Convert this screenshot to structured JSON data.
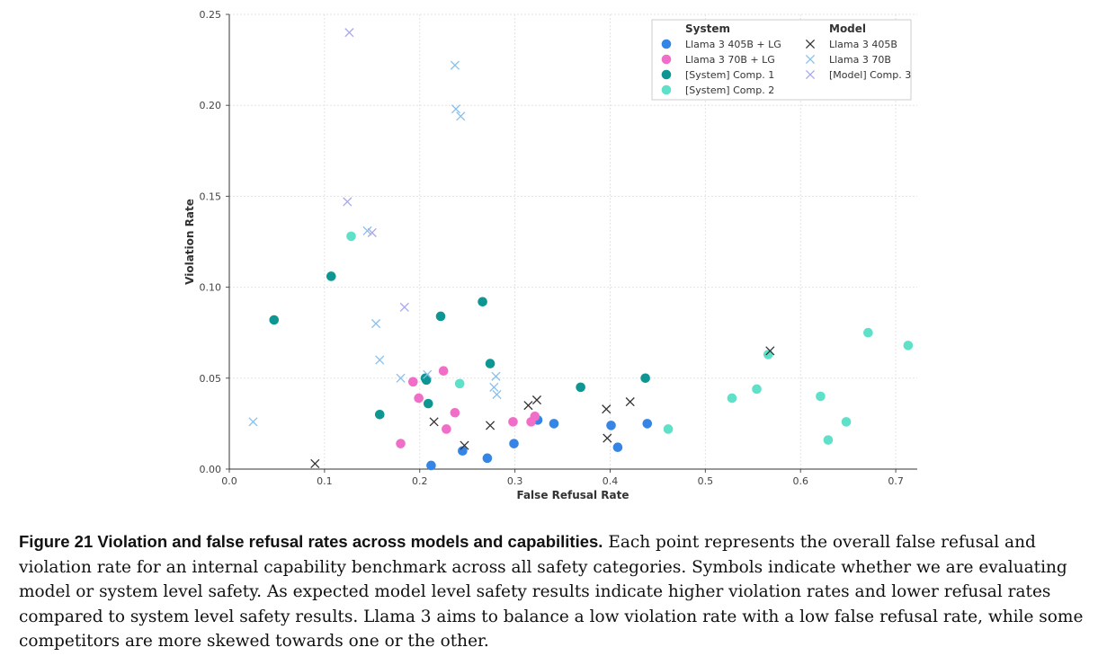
{
  "chart_data": {
    "type": "scatter",
    "xlabel": "False Refusal Rate",
    "ylabel": "Violation Rate",
    "xlim": [
      0.0,
      0.72
    ],
    "ylim": [
      0.0,
      0.25
    ],
    "xticks": [
      "0.0",
      "0.1",
      "0.2",
      "0.3",
      "0.4",
      "0.5",
      "0.6",
      "0.7"
    ],
    "yticks": [
      "0.00",
      "0.05",
      "0.10",
      "0.15",
      "0.20",
      "0.25"
    ],
    "grid": true,
    "legend": {
      "placement": "top-right",
      "system_title": "System",
      "model_title": "Model"
    },
    "series": [
      {
        "name": "Llama 3 405B + LG",
        "group": "System",
        "marker": "circle",
        "color": "#3585e6",
        "points": [
          [
            0.212,
            0.002
          ],
          [
            0.245,
            0.01
          ],
          [
            0.271,
            0.006
          ],
          [
            0.299,
            0.014
          ],
          [
            0.324,
            0.027
          ],
          [
            0.341,
            0.025
          ],
          [
            0.401,
            0.024
          ],
          [
            0.408,
            0.012
          ],
          [
            0.439,
            0.025
          ]
        ]
      },
      {
        "name": "Llama 3 70B + LG",
        "group": "System",
        "marker": "circle",
        "color": "#f06dc8",
        "points": [
          [
            0.18,
            0.014
          ],
          [
            0.193,
            0.048
          ],
          [
            0.199,
            0.039
          ],
          [
            0.225,
            0.054
          ],
          [
            0.228,
            0.022
          ],
          [
            0.237,
            0.031
          ],
          [
            0.298,
            0.026
          ],
          [
            0.317,
            0.026
          ],
          [
            0.321,
            0.029
          ]
        ]
      },
      {
        "name": "[System] Comp. 1",
        "group": "System",
        "marker": "circle",
        "color": "#0e9792",
        "points": [
          [
            0.047,
            0.082
          ],
          [
            0.107,
            0.106
          ],
          [
            0.158,
            0.03
          ],
          [
            0.206,
            0.05
          ],
          [
            0.207,
            0.049
          ],
          [
            0.209,
            0.036
          ],
          [
            0.222,
            0.084
          ],
          [
            0.266,
            0.092
          ],
          [
            0.274,
            0.058
          ],
          [
            0.369,
            0.045
          ],
          [
            0.437,
            0.05
          ]
        ]
      },
      {
        "name": "[System] Comp. 2",
        "group": "System",
        "marker": "circle",
        "color": "#5fe0c8",
        "points": [
          [
            0.128,
            0.128
          ],
          [
            0.242,
            0.047
          ],
          [
            0.461,
            0.022
          ],
          [
            0.528,
            0.039
          ],
          [
            0.554,
            0.044
          ],
          [
            0.566,
            0.063
          ],
          [
            0.621,
            0.04
          ],
          [
            0.629,
            0.016
          ],
          [
            0.648,
            0.026
          ],
          [
            0.671,
            0.075
          ],
          [
            0.713,
            0.068
          ]
        ]
      },
      {
        "name": "Llama 3 405B",
        "group": "Model",
        "marker": "x",
        "color": "#333333",
        "points": [
          [
            0.09,
            0.003
          ],
          [
            0.215,
            0.026
          ],
          [
            0.247,
            0.013
          ],
          [
            0.274,
            0.024
          ],
          [
            0.314,
            0.035
          ],
          [
            0.323,
            0.038
          ],
          [
            0.396,
            0.033
          ],
          [
            0.397,
            0.017
          ],
          [
            0.421,
            0.037
          ],
          [
            0.568,
            0.065
          ]
        ]
      },
      {
        "name": "Llama 3 70B",
        "group": "Model",
        "marker": "x",
        "color": "#88bfee",
        "points": [
          [
            0.025,
            0.026
          ],
          [
            0.145,
            0.131
          ],
          [
            0.154,
            0.08
          ],
          [
            0.158,
            0.06
          ],
          [
            0.18,
            0.05
          ],
          [
            0.208,
            0.052
          ],
          [
            0.237,
            0.222
          ],
          [
            0.238,
            0.198
          ],
          [
            0.243,
            0.194
          ],
          [
            0.278,
            0.045
          ],
          [
            0.28,
            0.051
          ],
          [
            0.281,
            0.041
          ]
        ]
      },
      {
        "name": "[Model] Comp. 3",
        "group": "Model",
        "marker": "x",
        "color": "#a8a8ec",
        "points": [
          [
            0.124,
            0.147
          ],
          [
            0.126,
            0.24
          ],
          [
            0.15,
            0.13
          ],
          [
            0.184,
            0.089
          ]
        ]
      }
    ]
  },
  "caption": {
    "title": "Figure 21  Violation and false refusal rates across models and capabilities.",
    "body": " Each point represents the overall false refusal and violation rate for an internal capability benchmark across all safety categories. Symbols indicate whether we are evaluating model or system level safety. As expected model level safety results indicate higher violation rates and lower refusal rates compared to system level safety results. Llama 3 aims to balance a low violation rate with a low false refusal rate, while some competitors are more skewed towards one or the other."
  }
}
